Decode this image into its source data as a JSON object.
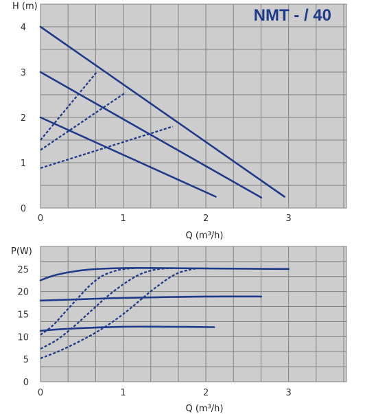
{
  "colors": {
    "plot_bg": "#cdcdcd",
    "grid": "#808080",
    "curve": "#1e3a8a",
    "title": "#1e3a8a"
  },
  "chart_data": [
    {
      "type": "line",
      "title": "NMT - / 40",
      "ylabel": "H (m)",
      "xlabel": "Q (m³/h)",
      "xlim": [
        0,
        3.7
      ],
      "ylim": [
        0,
        4.5
      ],
      "x_ticks": [
        "0",
        "1",
        "2",
        "3"
      ],
      "y_ticks": [
        "0",
        "1",
        "2",
        "3",
        "4"
      ],
      "grid": true,
      "series": [
        {
          "style": "solid",
          "points": [
            [
              0,
              4.0
            ],
            [
              2.95,
              0.25
            ]
          ]
        },
        {
          "style": "solid",
          "points": [
            [
              0,
              3.0
            ],
            [
              2.67,
              0.23
            ]
          ]
        },
        {
          "style": "solid",
          "points": [
            [
              0,
              2.0
            ],
            [
              2.12,
              0.25
            ]
          ]
        },
        {
          "style": "dashed",
          "points": [
            [
              0,
              1.5
            ],
            [
              0.68,
              3.0
            ]
          ]
        },
        {
          "style": "dashed",
          "points": [
            [
              0,
              1.28
            ],
            [
              1.03,
              2.55
            ]
          ]
        },
        {
          "style": "dashed",
          "points": [
            [
              0,
              0.88
            ],
            [
              1.6,
              1.8
            ]
          ]
        }
      ]
    },
    {
      "type": "line",
      "ylabel": "P(W)",
      "xlabel": "Q (m³/h)",
      "xlim": [
        0,
        3.7
      ],
      "ylim": [
        0,
        30
      ],
      "x_ticks": [
        "0",
        "1",
        "2",
        "3"
      ],
      "y_ticks": [
        "0",
        "5",
        "10",
        "15",
        "20",
        "25"
      ],
      "grid": true,
      "series": [
        {
          "style": "solid",
          "points": [
            [
              0,
              22.5
            ],
            [
              0.15,
              23.5
            ],
            [
              0.35,
              24.3
            ],
            [
              0.6,
              24.9
            ],
            [
              1.0,
              25.2
            ],
            [
              1.5,
              25.2
            ],
            [
              2.2,
              25.1
            ],
            [
              3.0,
              25.0
            ]
          ]
        },
        {
          "style": "solid",
          "points": [
            [
              0,
              18.0
            ],
            [
              0.5,
              18.3
            ],
            [
              1.0,
              18.6
            ],
            [
              2.0,
              18.9
            ],
            [
              2.67,
              18.9
            ]
          ]
        },
        {
          "style": "solid",
          "points": [
            [
              0,
              11.3
            ],
            [
              0.2,
              11.6
            ],
            [
              0.5,
              11.9
            ],
            [
              1.0,
              12.2
            ],
            [
              1.5,
              12.2
            ],
            [
              2.1,
              12.1
            ]
          ]
        },
        {
          "style": "dashed",
          "points": [
            [
              0,
              10.4
            ],
            [
              0.15,
              12.5
            ],
            [
              0.3,
              15.5
            ],
            [
              0.45,
              18.5
            ],
            [
              0.6,
              21.4
            ],
            [
              0.75,
              23.5
            ],
            [
              0.95,
              24.8
            ],
            [
              1.15,
              25.2
            ]
          ]
        },
        {
          "style": "dashed",
          "points": [
            [
              0,
              7.3
            ],
            [
              0.2,
              9.3
            ],
            [
              0.4,
              12.2
            ],
            [
              0.6,
              15.5
            ],
            [
              0.8,
              18.8
            ],
            [
              1.0,
              21.6
            ],
            [
              1.2,
              23.8
            ],
            [
              1.4,
              24.9
            ],
            [
              1.6,
              25.2
            ]
          ]
        },
        {
          "style": "dashed",
          "points": [
            [
              0,
              5.2
            ],
            [
              0.2,
              6.6
            ],
            [
              0.4,
              8.3
            ],
            [
              0.6,
              10.2
            ],
            [
              0.8,
              12.4
            ],
            [
              1.0,
              15.0
            ],
            [
              1.2,
              18.0
            ],
            [
              1.4,
              21.0
            ],
            [
              1.65,
              24.0
            ],
            [
              1.9,
              25.2
            ]
          ]
        }
      ]
    }
  ]
}
